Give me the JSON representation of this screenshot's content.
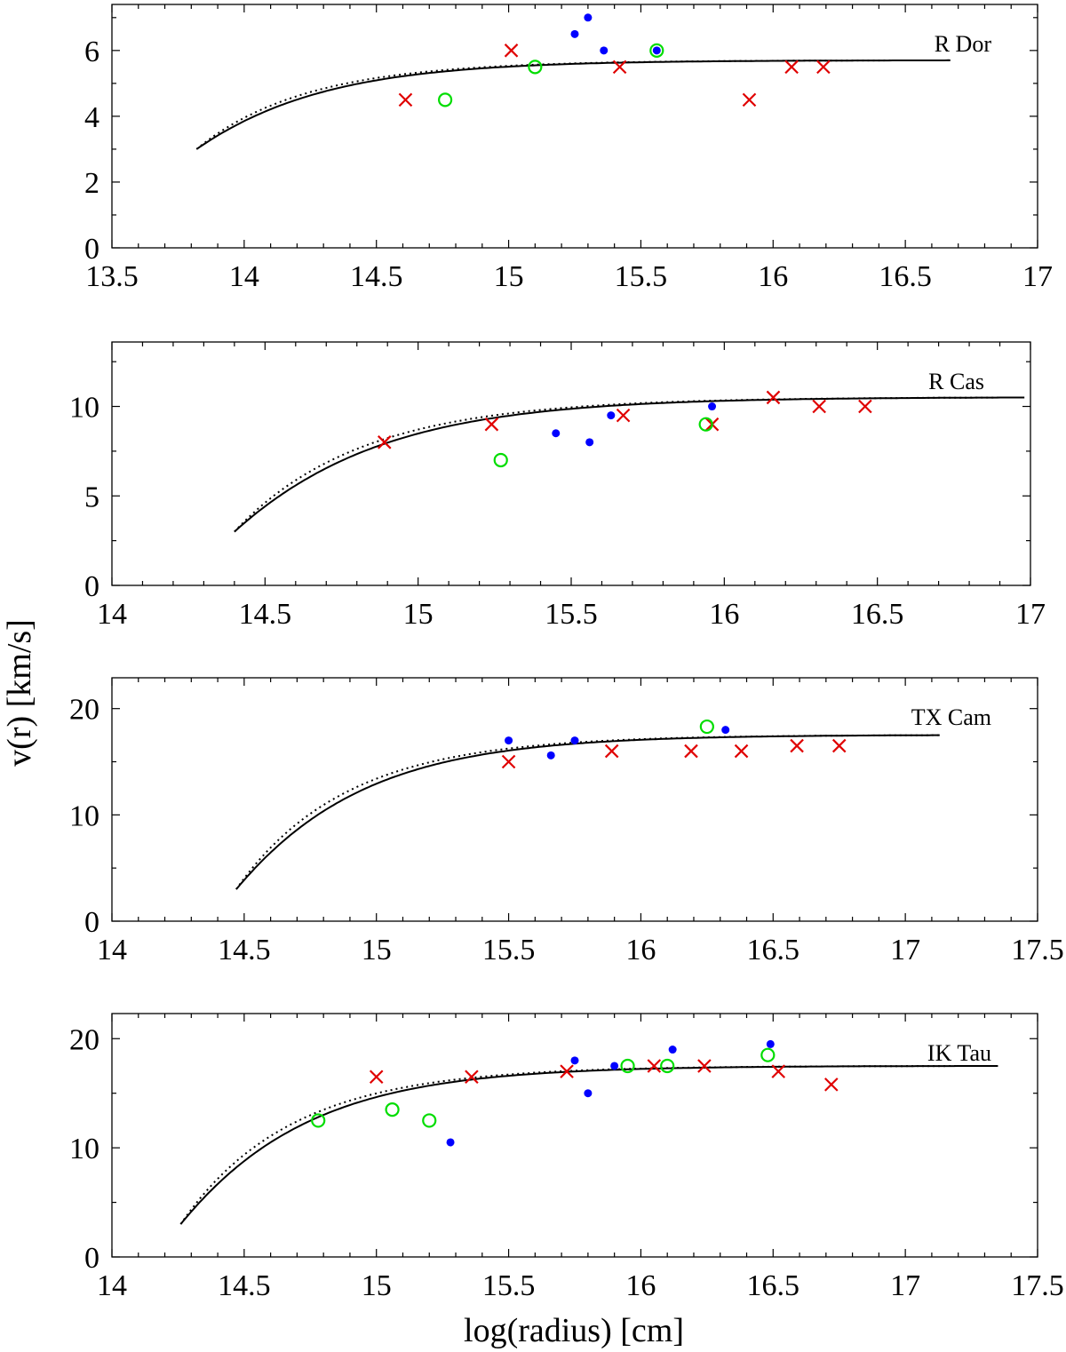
{
  "figure": {
    "ylabel": "v(r) [km/s]",
    "xlabel": "log(radius) [cm]"
  },
  "chart_data": [
    {
      "type": "scatter",
      "label": "R Dor",
      "xlim": [
        13.5,
        17
      ],
      "ylim": [
        0,
        7.4
      ],
      "xticks": [
        13.5,
        14,
        14.5,
        15,
        15.5,
        16,
        16.5,
        17
      ],
      "xtick_labels": [
        "13.5",
        "14",
        "14.5",
        "15",
        "15.5",
        "16",
        "16.5",
        "17"
      ],
      "yticks": [
        0,
        2,
        4,
        6
      ],
      "ytick_labels": [
        "0",
        "2",
        "4",
        "6"
      ],
      "model": {
        "r0": 13.82,
        "r_end": 16.67,
        "v0": 3.0,
        "vinf": 5.7,
        "beta_solid": 1.5,
        "beta_dotted": 0.5,
        "scale_solid": 0.35,
        "scale_dotted": 0.2
      },
      "series": [
        {
          "name": "model (solid)",
          "kind": "solid-line"
        },
        {
          "name": "model (dotted)",
          "kind": "dotted-line"
        },
        {
          "name": "blue dots",
          "marker": "dot",
          "color": "#0000ff",
          "points": [
            [
              15.25,
              6.5
            ],
            [
              15.3,
              7.0
            ],
            [
              15.36,
              6.0
            ],
            [
              15.56,
              6.0
            ]
          ]
        },
        {
          "name": "red crosses",
          "marker": "cross",
          "color": "#e00000",
          "points": [
            [
              14.61,
              4.5
            ],
            [
              15.01,
              6.0
            ],
            [
              15.42,
              5.5
            ],
            [
              15.91,
              4.5
            ],
            [
              16.07,
              5.5
            ],
            [
              16.19,
              5.5
            ]
          ]
        },
        {
          "name": "green circles",
          "marker": "circle",
          "color": "#00dd00",
          "points": [
            [
              14.76,
              4.5
            ],
            [
              15.1,
              5.5
            ],
            [
              15.56,
              6.0
            ]
          ]
        }
      ]
    },
    {
      "type": "scatter",
      "label": "R Cas",
      "xlim": [
        14,
        17
      ],
      "ylim": [
        0,
        13.6
      ],
      "xticks": [
        14,
        14.5,
        15,
        15.5,
        16,
        16.5,
        17
      ],
      "xtick_labels": [
        "14",
        "14.5",
        "15",
        "15.5",
        "16",
        "16.5",
        "17"
      ],
      "yticks": [
        0,
        5,
        10
      ],
      "ytick_labels": [
        "0",
        "5",
        "10"
      ],
      "model": {
        "r0": 14.4,
        "r_end": 16.98,
        "v0": 3.0,
        "vinf": 10.5,
        "beta_solid": 1.5,
        "beta_dotted": 0.5,
        "scale_solid": 0.35,
        "scale_dotted": 0.2
      },
      "series": [
        {
          "name": "model (solid)",
          "kind": "solid-line"
        },
        {
          "name": "model (dotted)",
          "kind": "dotted-line"
        },
        {
          "name": "blue dots",
          "marker": "dot",
          "color": "#0000ff",
          "points": [
            [
              15.45,
              8.5
            ],
            [
              15.56,
              8.0
            ],
            [
              15.63,
              9.5
            ],
            [
              15.96,
              10.0
            ]
          ]
        },
        {
          "name": "red crosses",
          "marker": "cross",
          "color": "#e00000",
          "points": [
            [
              14.89,
              8.0
            ],
            [
              15.24,
              9.0
            ],
            [
              15.67,
              9.5
            ],
            [
              15.96,
              9.0
            ],
            [
              16.16,
              10.5
            ],
            [
              16.31,
              10.0
            ],
            [
              16.46,
              10.0
            ]
          ]
        },
        {
          "name": "green circles",
          "marker": "circle",
          "color": "#00dd00",
          "points": [
            [
              15.27,
              7.0
            ],
            [
              15.94,
              9.0
            ]
          ]
        }
      ]
    },
    {
      "type": "scatter",
      "label": "TX Cam",
      "xlim": [
        14,
        17.5
      ],
      "ylim": [
        0,
        22.9
      ],
      "xticks": [
        14,
        14.5,
        15,
        15.5,
        16,
        16.5,
        17,
        17.5
      ],
      "xtick_labels": [
        "14",
        "14.5",
        "15",
        "15.5",
        "16",
        "16.5",
        "17",
        "17.5"
      ],
      "yticks": [
        0,
        10,
        20
      ],
      "ytick_labels": [
        "0",
        "10",
        "20"
      ],
      "model": {
        "r0": 14.47,
        "r_end": 17.13,
        "v0": 3.0,
        "vinf": 17.5,
        "beta_solid": 1.5,
        "beta_dotted": 0.5,
        "scale_solid": 0.35,
        "scale_dotted": 0.2
      },
      "series": [
        {
          "name": "model (solid)",
          "kind": "solid-line"
        },
        {
          "name": "model (dotted)",
          "kind": "dotted-line"
        },
        {
          "name": "blue dots",
          "marker": "dot",
          "color": "#0000ff",
          "points": [
            [
              15.5,
              17.0
            ],
            [
              15.66,
              15.6
            ],
            [
              15.75,
              17.0
            ],
            [
              16.32,
              18.0
            ]
          ]
        },
        {
          "name": "red crosses",
          "marker": "cross",
          "color": "#e00000",
          "points": [
            [
              15.5,
              15.0
            ],
            [
              15.89,
              16.0
            ],
            [
              16.19,
              16.0
            ],
            [
              16.38,
              16.0
            ],
            [
              16.59,
              16.5
            ],
            [
              16.75,
              16.5
            ]
          ]
        },
        {
          "name": "green circles",
          "marker": "circle",
          "color": "#00dd00",
          "points": [
            [
              16.25,
              18.3
            ]
          ]
        }
      ]
    },
    {
      "type": "scatter",
      "label": "IK Tau",
      "xlim": [
        14,
        17.5
      ],
      "ylim": [
        0,
        22.3
      ],
      "xticks": [
        14,
        14.5,
        15,
        15.5,
        16,
        16.5,
        17,
        17.5
      ],
      "xtick_labels": [
        "14",
        "14.5",
        "15",
        "15.5",
        "16",
        "16.5",
        "17",
        "17.5"
      ],
      "yticks": [
        0,
        10,
        20
      ],
      "ytick_labels": [
        "0",
        "10",
        "20"
      ],
      "model": {
        "r0": 14.26,
        "r_end": 17.35,
        "v0": 3.0,
        "vinf": 17.5,
        "beta_solid": 1.5,
        "beta_dotted": 0.5,
        "scale_solid": 0.35,
        "scale_dotted": 0.2
      },
      "series": [
        {
          "name": "model (solid)",
          "kind": "solid-line"
        },
        {
          "name": "model (dotted)",
          "kind": "dotted-line"
        },
        {
          "name": "blue dots",
          "marker": "dot",
          "color": "#0000ff",
          "points": [
            [
              15.28,
              10.5
            ],
            [
              15.75,
              18.0
            ],
            [
              15.8,
              15.0
            ],
            [
              15.9,
              17.5
            ],
            [
              16.12,
              19.0
            ],
            [
              16.49,
              19.5
            ]
          ]
        },
        {
          "name": "red crosses",
          "marker": "cross",
          "color": "#e00000",
          "points": [
            [
              15.0,
              16.5
            ],
            [
              15.36,
              16.5
            ],
            [
              15.72,
              17.0
            ],
            [
              16.05,
              17.5
            ],
            [
              16.24,
              17.5
            ],
            [
              16.52,
              17.0
            ],
            [
              16.72,
              15.8
            ]
          ]
        },
        {
          "name": "green circles",
          "marker": "circle",
          "color": "#00dd00",
          "points": [
            [
              14.78,
              12.5
            ],
            [
              15.06,
              13.5
            ],
            [
              15.2,
              12.5
            ],
            [
              15.95,
              17.5
            ],
            [
              16.1,
              17.5
            ],
            [
              16.48,
              18.5
            ]
          ]
        }
      ]
    }
  ]
}
